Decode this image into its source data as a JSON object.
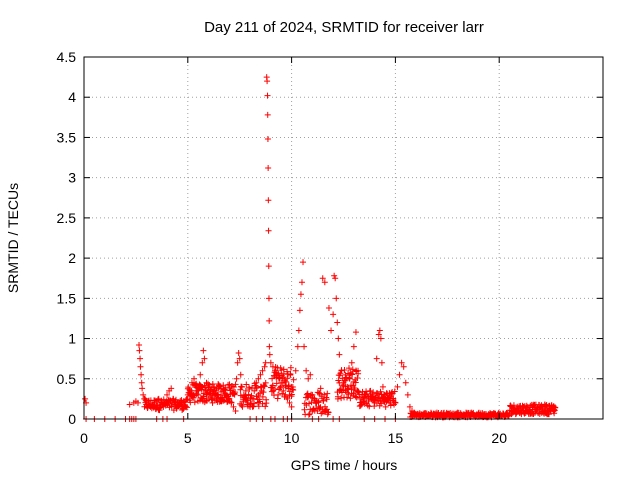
{
  "chart_data": {
    "type": "scatter",
    "title": "Day 211 of 2024, SRMTID for receiver larr",
    "xlabel": "GPS time / hours",
    "ylabel": "SRMTID / TECUs",
    "xlim": [
      0,
      25
    ],
    "ylim": [
      0,
      4.5
    ],
    "xticks": [
      0,
      5,
      10,
      15,
      20
    ],
    "xtick_labels": [
      "0",
      "5",
      "10",
      "15",
      "20"
    ],
    "yticks": [
      0,
      0.5,
      1,
      1.5,
      2,
      2.5,
      3,
      3.5,
      4,
      4.5
    ],
    "ytick_labels": [
      "0",
      "0.5",
      "1",
      "1.5",
      "2",
      "2.5",
      "3",
      "3.5",
      "4",
      "4.5"
    ],
    "grid": true,
    "marker": "+",
    "series": [
      {
        "name": "SRMTID",
        "color": "#ff0000",
        "points": [
          [
            0.05,
            0.25
          ],
          [
            0.1,
            0.2
          ],
          [
            0.1,
            0.0
          ],
          [
            0.5,
            0.0
          ],
          [
            1.0,
            0.0
          ],
          [
            1.5,
            0.0
          ],
          [
            2.0,
            0.0
          ],
          [
            2.2,
            0.0
          ],
          [
            2.3,
            0.0
          ],
          [
            2.4,
            0.0
          ],
          [
            2.5,
            0.0
          ],
          [
            2.2,
            0.18
          ],
          [
            2.4,
            0.2
          ],
          [
            2.5,
            0.22
          ],
          [
            2.6,
            0.2
          ],
          [
            2.65,
            0.92
          ],
          [
            2.67,
            0.85
          ],
          [
            2.7,
            0.75
          ],
          [
            2.72,
            0.65
          ],
          [
            2.75,
            0.55
          ],
          [
            2.78,
            0.45
          ],
          [
            2.8,
            0.38
          ],
          [
            2.85,
            0.3
          ],
          [
            2.9,
            0.25
          ],
          [
            3.0,
            0.18
          ],
          [
            3.1,
            0.2
          ],
          [
            3.2,
            0.15
          ],
          [
            3.3,
            0.18
          ],
          [
            3.4,
            0.2
          ],
          [
            3.5,
            0.22
          ],
          [
            3.6,
            0.25
          ],
          [
            3.7,
            0.2
          ],
          [
            3.8,
            0.18
          ],
          [
            3.9,
            0.2
          ],
          [
            4.0,
            0.3
          ],
          [
            4.1,
            0.35
          ],
          [
            4.2,
            0.38
          ],
          [
            4.3,
            0.25
          ],
          [
            4.4,
            0.22
          ],
          [
            4.5,
            0.2
          ],
          [
            4.6,
            0.18
          ],
          [
            4.7,
            0.2
          ],
          [
            4.8,
            0.22
          ],
          [
            4.9,
            0.15
          ],
          [
            3.5,
            0.0
          ],
          [
            3.8,
            0.0
          ],
          [
            4.0,
            0.0
          ],
          [
            4.8,
            0.0
          ],
          [
            5.0,
            0.3
          ],
          [
            5.1,
            0.35
          ],
          [
            5.2,
            0.45
          ],
          [
            5.3,
            0.5
          ],
          [
            5.4,
            0.35
          ],
          [
            5.5,
            0.3
          ],
          [
            5.6,
            0.55
          ],
          [
            5.7,
            0.7
          ],
          [
            5.75,
            0.85
          ],
          [
            5.8,
            0.75
          ],
          [
            5.9,
            0.45
          ],
          [
            6.0,
            0.4
          ],
          [
            6.1,
            0.3
          ],
          [
            6.2,
            0.25
          ],
          [
            6.3,
            0.3
          ],
          [
            6.4,
            0.38
          ],
          [
            6.5,
            0.42
          ],
          [
            6.6,
            0.38
          ],
          [
            6.7,
            0.35
          ],
          [
            6.8,
            0.3
          ],
          [
            6.9,
            0.28
          ],
          [
            7.0,
            0.25
          ],
          [
            7.1,
            0.2
          ],
          [
            7.2,
            0.15
          ],
          [
            7.3,
            0.1
          ],
          [
            7.35,
            0.5
          ],
          [
            7.4,
            0.7
          ],
          [
            7.45,
            0.82
          ],
          [
            7.5,
            0.75
          ],
          [
            7.55,
            0.55
          ],
          [
            7.6,
            0.4
          ],
          [
            7.7,
            0.3
          ],
          [
            7.8,
            0.25
          ],
          [
            7.9,
            0.2
          ],
          [
            8.0,
            0.15
          ],
          [
            8.1,
            0.25
          ],
          [
            8.2,
            0.35
          ],
          [
            8.3,
            0.45
          ],
          [
            8.4,
            0.5
          ],
          [
            8.5,
            0.55
          ],
          [
            8.6,
            0.6
          ],
          [
            8.7,
            0.65
          ],
          [
            8.75,
            0.7
          ],
          [
            8.0,
            0.0
          ],
          [
            8.3,
            0.0
          ],
          [
            8.6,
            0.0
          ],
          [
            8.8,
            4.25
          ],
          [
            8.82,
            4.2
          ],
          [
            8.84,
            4.02
          ],
          [
            8.85,
            3.78
          ],
          [
            8.86,
            3.48
          ],
          [
            8.87,
            3.12
          ],
          [
            8.88,
            2.72
          ],
          [
            8.89,
            2.34
          ],
          [
            8.9,
            1.9
          ],
          [
            8.91,
            1.5
          ],
          [
            8.92,
            1.22
          ],
          [
            8.93,
            0.9
          ],
          [
            8.95,
            0.8
          ],
          [
            9.0,
            0.7
          ],
          [
            9.1,
            0.65
          ],
          [
            9.2,
            0.6
          ],
          [
            9.3,
            0.55
          ],
          [
            9.4,
            0.5
          ],
          [
            9.5,
            0.45
          ],
          [
            9.6,
            0.35
          ],
          [
            9.7,
            0.3
          ],
          [
            9.8,
            0.25
          ],
          [
            9.9,
            0.2
          ],
          [
            10.0,
            0.15
          ],
          [
            9.0,
            0.0
          ],
          [
            9.2,
            0.0
          ],
          [
            9.6,
            0.0
          ],
          [
            9.8,
            0.0
          ],
          [
            10.0,
            0.0
          ],
          [
            10.2,
            0.6
          ],
          [
            10.3,
            0.9
          ],
          [
            10.35,
            1.1
          ],
          [
            10.4,
            1.35
          ],
          [
            10.45,
            1.55
          ],
          [
            10.5,
            1.7
          ],
          [
            10.55,
            1.95
          ],
          [
            10.6,
            0.9
          ],
          [
            10.7,
            0.6
          ],
          [
            10.8,
            0.5
          ],
          [
            10.9,
            0.55
          ],
          [
            11.0,
            0.3
          ],
          [
            11.1,
            0.25
          ],
          [
            11.2,
            0.2
          ],
          [
            11.3,
            0.15
          ],
          [
            11.4,
            0.38
          ],
          [
            11.5,
            0.12
          ],
          [
            11.6,
            0.1
          ],
          [
            11.7,
            0.12
          ],
          [
            11.5,
            1.75
          ],
          [
            11.6,
            1.7
          ],
          [
            11.8,
            1.38
          ],
          [
            11.9,
            1.1
          ],
          [
            12.0,
            1.3
          ],
          [
            12.05,
            1.78
          ],
          [
            12.1,
            1.75
          ],
          [
            12.15,
            1.5
          ],
          [
            12.2,
            1.2
          ],
          [
            12.25,
            1.0
          ],
          [
            12.3,
            0.8
          ],
          [
            12.4,
            0.6
          ],
          [
            12.5,
            0.45
          ],
          [
            12.6,
            0.35
          ],
          [
            12.7,
            0.4
          ],
          [
            12.8,
            0.5
          ],
          [
            12.9,
            0.7
          ],
          [
            13.0,
            0.9
          ],
          [
            13.1,
            1.08
          ],
          [
            13.2,
            0.6
          ],
          [
            11.0,
            0.0
          ],
          [
            11.3,
            0.0
          ],
          [
            12.0,
            0.0
          ],
          [
            12.3,
            0.0
          ],
          [
            13.3,
            0.25
          ],
          [
            13.4,
            0.3
          ],
          [
            13.5,
            0.25
          ],
          [
            13.6,
            0.2
          ],
          [
            13.7,
            0.28
          ],
          [
            13.8,
            0.35
          ],
          [
            13.9,
            0.3
          ],
          [
            14.0,
            0.2
          ],
          [
            14.1,
            0.75
          ],
          [
            14.2,
            1.05
          ],
          [
            14.25,
            1.1
          ],
          [
            14.3,
            1.0
          ],
          [
            14.35,
            0.7
          ],
          [
            14.4,
            0.4
          ],
          [
            14.5,
            0.3
          ],
          [
            14.6,
            0.25
          ],
          [
            14.7,
            0.2
          ],
          [
            14.8,
            0.3
          ],
          [
            14.9,
            0.25
          ],
          [
            15.0,
            0.2
          ],
          [
            13.5,
            0.0
          ],
          [
            14.0,
            0.0
          ],
          [
            14.5,
            0.0
          ],
          [
            15.0,
            0.0
          ],
          [
            15.1,
            0.4
          ],
          [
            15.2,
            0.55
          ],
          [
            15.3,
            0.7
          ],
          [
            15.4,
            0.65
          ],
          [
            15.5,
            0.45
          ],
          [
            15.6,
            0.3
          ],
          [
            15.7,
            0.15
          ],
          [
            15.8,
            0.1
          ],
          [
            15.9,
            0.08
          ],
          [
            16.0,
            0.06
          ],
          [
            16.3,
            0.05
          ],
          [
            16.6,
            0.06
          ],
          [
            17.0,
            0.08
          ],
          [
            17.3,
            0.07
          ],
          [
            17.6,
            0.06
          ],
          [
            18.0,
            0.08
          ],
          [
            18.3,
            0.06
          ],
          [
            18.6,
            0.05
          ],
          [
            19.0,
            0.07
          ],
          [
            19.3,
            0.06
          ],
          [
            19.6,
            0.04
          ],
          [
            20.0,
            0.05
          ],
          [
            20.3,
            0.04
          ],
          [
            20.6,
            0.06
          ],
          [
            21.0,
            0.08
          ],
          [
            21.3,
            0.1
          ],
          [
            21.6,
            0.12
          ],
          [
            22.0,
            0.15
          ],
          [
            22.2,
            0.18
          ],
          [
            22.4,
            0.16
          ],
          [
            22.6,
            0.15
          ],
          [
            22.7,
            0.14
          ]
        ]
      }
    ],
    "dense_segments": [
      {
        "x0": 2.9,
        "x1": 5.0,
        "base": 0.18,
        "amp": 0.07,
        "n": 90
      },
      {
        "x0": 5.0,
        "x1": 7.3,
        "base": 0.32,
        "amp": 0.12,
        "n": 130
      },
      {
        "x0": 7.5,
        "x1": 8.8,
        "base": 0.3,
        "amp": 0.15,
        "n": 60
      },
      {
        "x0": 9.0,
        "x1": 10.1,
        "base": 0.45,
        "amp": 0.2,
        "n": 60
      },
      {
        "x0": 10.6,
        "x1": 11.8,
        "base": 0.2,
        "amp": 0.15,
        "n": 50
      },
      {
        "x0": 12.2,
        "x1": 13.2,
        "base": 0.45,
        "amp": 0.2,
        "n": 60
      },
      {
        "x0": 13.2,
        "x1": 15.0,
        "base": 0.25,
        "amp": 0.1,
        "n": 80
      },
      {
        "x0": 15.7,
        "x1": 20.5,
        "base": 0.05,
        "amp": 0.03,
        "n": 200
      },
      {
        "x0": 20.5,
        "x1": 22.7,
        "base": 0.12,
        "amp": 0.06,
        "n": 120
      }
    ]
  }
}
